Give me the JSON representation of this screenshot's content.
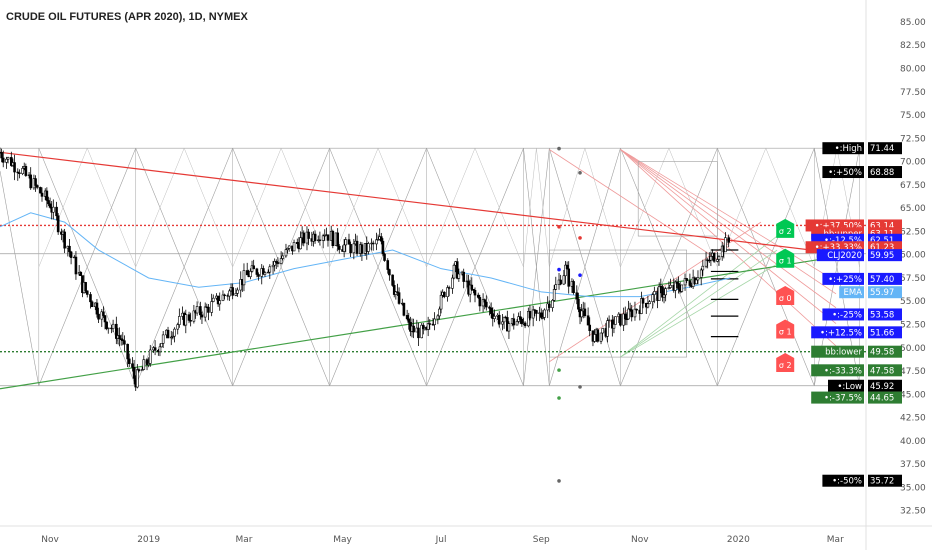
{
  "title": "CRUDE OIL FUTURES (APR 2020), 1D, NYMEX",
  "chart_data": {
    "type": "candlestick",
    "title": "CRUDE OIL FUTURES (APR 2020), 1D, NYMEX",
    "y_axis": {
      "position": "right",
      "range": [
        31.5,
        86.5
      ],
      "tick_labels": [
        "85.00",
        "82.50",
        "80.00",
        "77.50",
        "75.00",
        "72.50",
        "70.00",
        "67.50",
        "65.00",
        "62.50",
        "60.00",
        "57.50",
        "55.00",
        "52.50",
        "50.00",
        "47.50",
        "45.00",
        "42.50",
        "40.00",
        "37.50",
        "35.00",
        "32.50"
      ]
    },
    "x_axis": {
      "range": [
        "2018-10-01",
        "2020-03-20"
      ],
      "tick_labels": [
        {
          "label": "Nov",
          "date": "2018-11-01"
        },
        {
          "label": "2019",
          "date": "2019-01-01"
        },
        {
          "label": "Mar",
          "date": "2019-03-01"
        },
        {
          "label": "May",
          "date": "2019-05-01"
        },
        {
          "label": "Jul",
          "date": "2019-07-01"
        },
        {
          "label": "Sep",
          "date": "2019-09-01"
        },
        {
          "label": "Nov",
          "date": "2019-11-01"
        },
        {
          "label": "2020",
          "date": "2020-01-01"
        },
        {
          "label": "Mar",
          "date": "2020-03-01"
        }
      ]
    },
    "series": [
      {
        "name": "CLJ2020",
        "kind": "ohlc-candles",
        "points": [
          {
            "x": "2018-10-01",
            "y": 71.0
          },
          {
            "x": "2018-10-15",
            "y": 69.0
          },
          {
            "x": "2018-11-01",
            "y": 65.5
          },
          {
            "x": "2018-11-12",
            "y": 61.0
          },
          {
            "x": "2018-11-22",
            "y": 56.5
          },
          {
            "x": "2018-12-05",
            "y": 53.0
          },
          {
            "x": "2018-12-15",
            "y": 51.0
          },
          {
            "x": "2018-12-24",
            "y": 46.5
          },
          {
            "x": "2019-01-08",
            "y": 50.5
          },
          {
            "x": "2019-01-22",
            "y": 53.0
          },
          {
            "x": "2019-02-05",
            "y": 54.0
          },
          {
            "x": "2019-02-20",
            "y": 56.0
          },
          {
            "x": "2019-03-05",
            "y": 58.0
          },
          {
            "x": "2019-03-20",
            "y": 59.0
          },
          {
            "x": "2019-04-05",
            "y": 61.5
          },
          {
            "x": "2019-04-20",
            "y": 62.5
          },
          {
            "x": "2019-05-01",
            "y": 61.0
          },
          {
            "x": "2019-05-15",
            "y": 60.5
          },
          {
            "x": "2019-05-25",
            "y": 61.5
          },
          {
            "x": "2019-06-03",
            "y": 56.0
          },
          {
            "x": "2019-06-12",
            "y": 52.0
          },
          {
            "x": "2019-06-22",
            "y": 51.5
          },
          {
            "x": "2019-07-01",
            "y": 55.0
          },
          {
            "x": "2019-07-10",
            "y": 58.5
          },
          {
            "x": "2019-07-20",
            "y": 56.0
          },
          {
            "x": "2019-08-01",
            "y": 54.0
          },
          {
            "x": "2019-08-10",
            "y": 52.5
          },
          {
            "x": "2019-08-20",
            "y": 53.0
          },
          {
            "x": "2019-09-01",
            "y": 53.5
          },
          {
            "x": "2019-09-08",
            "y": 55.5
          },
          {
            "x": "2019-09-16",
            "y": 58.5
          },
          {
            "x": "2019-09-26",
            "y": 54.0
          },
          {
            "x": "2019-10-04",
            "y": 51.0
          },
          {
            "x": "2019-10-15",
            "y": 52.5
          },
          {
            "x": "2019-10-25",
            "y": 53.5
          },
          {
            "x": "2019-11-05",
            "y": 55.0
          },
          {
            "x": "2019-11-15",
            "y": 56.0
          },
          {
            "x": "2019-11-25",
            "y": 56.5
          },
          {
            "x": "2019-12-05",
            "y": 57.5
          },
          {
            "x": "2019-12-15",
            "y": 59.5
          },
          {
            "x": "2019-12-27",
            "y": 61.5
          }
        ]
      },
      {
        "name": "EMA",
        "kind": "line",
        "points": [
          {
            "x": "2018-10-01",
            "y": 63.0
          },
          {
            "x": "2018-10-20",
            "y": 64.5
          },
          {
            "x": "2018-11-10",
            "y": 63.5
          },
          {
            "x": "2018-12-01",
            "y": 60.5
          },
          {
            "x": "2019-01-01",
            "y": 57.5
          },
          {
            "x": "2019-02-01",
            "y": 56.5
          },
          {
            "x": "2019-03-01",
            "y": 57.0
          },
          {
            "x": "2019-04-01",
            "y": 58.5
          },
          {
            "x": "2019-05-01",
            "y": 59.5
          },
          {
            "x": "2019-06-01",
            "y": 60.5
          },
          {
            "x": "2019-07-01",
            "y": 58.5
          },
          {
            "x": "2019-08-01",
            "y": 57.5
          },
          {
            "x": "2019-09-01",
            "y": 56.0
          },
          {
            "x": "2019-10-01",
            "y": 55.5
          },
          {
            "x": "2019-11-01",
            "y": 55.5
          },
          {
            "x": "2019-12-01",
            "y": 56.5
          },
          {
            "x": "2019-12-27",
            "y": 57.5
          }
        ]
      }
    ],
    "trendlines": [
      {
        "color": "#e53935",
        "from": {
          "x": "2018-10-01",
          "y": 71.0
        },
        "to": {
          "x": "2020-03-10",
          "y": 60.0
        }
      },
      {
        "color": "#43a047",
        "from": {
          "x": "2018-10-01",
          "y": 45.6
        },
        "to": {
          "x": "2020-03-10",
          "y": 60.0
        }
      }
    ],
    "levels": [
      {
        "label": "•:High",
        "value": "71.44",
        "y": 71.44,
        "color": "#000000"
      },
      {
        "label": "•:+50%",
        "value": "68.88",
        "y": 68.88,
        "color": "#000000"
      },
      {
        "label": "•:+37.50%",
        "value": "63.14",
        "y": 63.14,
        "color": "#e53935",
        "dotted_line": true
      },
      {
        "label": "bb:upper",
        "value": "63.11",
        "y": 62.3,
        "color": "#e53935"
      },
      {
        "label": "•:-12.5%",
        "value": "62.51",
        "y": 61.6,
        "color": "#1a1aff"
      },
      {
        "label": "•:+33.33%",
        "value": "61.23",
        "y": 60.8,
        "color": "#e53935"
      },
      {
        "label": "CLJ2020",
        "value": "59.95",
        "y": 59.95,
        "color": "#1a1aff"
      },
      {
        "label": "•:+25%",
        "value": "57.40",
        "y": 57.4,
        "color": "#1a1aff"
      },
      {
        "label": "EMA",
        "value": "55.97",
        "y": 55.97,
        "color": "#64b5f6"
      },
      {
        "label": "•:-25%",
        "value": "53.58",
        "y": 53.58,
        "color": "#1a1aff"
      },
      {
        "label": "•:+12.5%",
        "value": "51.66",
        "y": 51.66,
        "color": "#1a1aff"
      },
      {
        "label": "bb:lower",
        "value": "49.58",
        "y": 49.58,
        "color": "#2e7d32",
        "dotted_line": true
      },
      {
        "label": "•:-33.3%",
        "value": "47.58",
        "y": 47.58,
        "color": "#2e7d32"
      },
      {
        "label": "•:Low",
        "value": "45.92",
        "y": 45.92,
        "color": "#000000"
      },
      {
        "label": "•:-37.5%",
        "value": "44.65",
        "y": 44.65,
        "color": "#2e7d32"
      },
      {
        "label": "•:-50%",
        "value": "35.72",
        "y": 35.72,
        "color": "#000000"
      }
    ],
    "sigma_markers": [
      {
        "label": "σ 2",
        "y": 61.8,
        "color": "#00c853",
        "direction": "up"
      },
      {
        "label": "σ 1",
        "y": 58.6,
        "color": "#00c853",
        "direction": "up"
      },
      {
        "label": "σ 0",
        "y": 54.6,
        "color": "#ff5252",
        "direction": "down"
      },
      {
        "label": "σ 1",
        "y": 51.0,
        "color": "#ff5252",
        "direction": "down"
      },
      {
        "label": "σ 2",
        "y": 47.4,
        "color": "#ff5252",
        "direction": "down"
      }
    ],
    "pivot_dots": [
      {
        "x": "2019-09-12",
        "y": 71.4,
        "color": "#666666"
      },
      {
        "x": "2019-09-25",
        "y": 68.8,
        "color": "#666666"
      },
      {
        "x": "2019-09-12",
        "y": 63.0,
        "color": "#e53935"
      },
      {
        "x": "2019-09-25",
        "y": 61.8,
        "color": "#e53935"
      },
      {
        "x": "2019-09-12",
        "y": 58.4,
        "color": "#1a1aff"
      },
      {
        "x": "2019-09-25",
        "y": 57.8,
        "color": "#1a1aff"
      },
      {
        "x": "2019-09-12",
        "y": 47.6,
        "color": "#43a047"
      },
      {
        "x": "2019-09-25",
        "y": 45.8,
        "color": "#666666"
      },
      {
        "x": "2019-09-12",
        "y": 44.6,
        "color": "#43a047"
      },
      {
        "x": "2019-09-12",
        "y": 35.7,
        "color": "#666666"
      }
    ],
    "gann_grid": {
      "price_top": 71.44,
      "price_bottom": 45.92,
      "time_divisions": [
        "2018-10-25",
        "2018-12-24",
        "2019-02-22",
        "2019-04-23",
        "2019-06-22",
        "2019-08-21",
        "2019-09-06",
        "2019-10-20",
        "2019-12-19",
        "2020-02-17",
        "2020-03-16"
      ]
    },
    "grid": false,
    "legend": "none"
  }
}
